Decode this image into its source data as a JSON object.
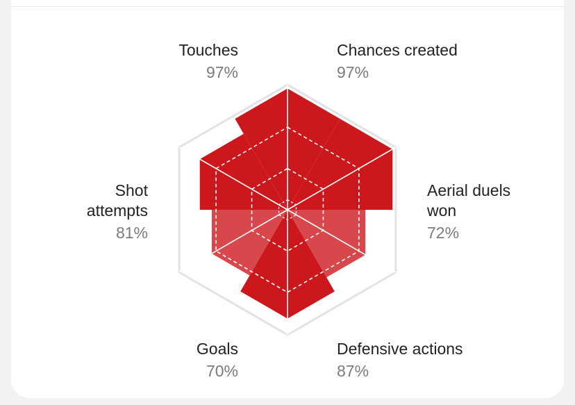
{
  "chart_data": {
    "type": "radar",
    "max": 100,
    "colors": {
      "high": "#cc181c",
      "low": "#d8474b",
      "grid": "#e3e3e3",
      "inner_grid": "#ffffff"
    },
    "axes": [
      {
        "name": "Touches",
        "value": 97,
        "value_label": "97%"
      },
      {
        "name": "Chances created",
        "value": 97,
        "value_label": "97%"
      },
      {
        "name": "Aerial duels won",
        "value": 72,
        "value_label": "72%"
      },
      {
        "name": "Defensive actions",
        "value": 87,
        "value_label": "87%"
      },
      {
        "name": "Goals",
        "value": 70,
        "value_label": "70%"
      },
      {
        "name": "Shot attempts",
        "value": 81,
        "value_label": "81%"
      }
    ]
  }
}
